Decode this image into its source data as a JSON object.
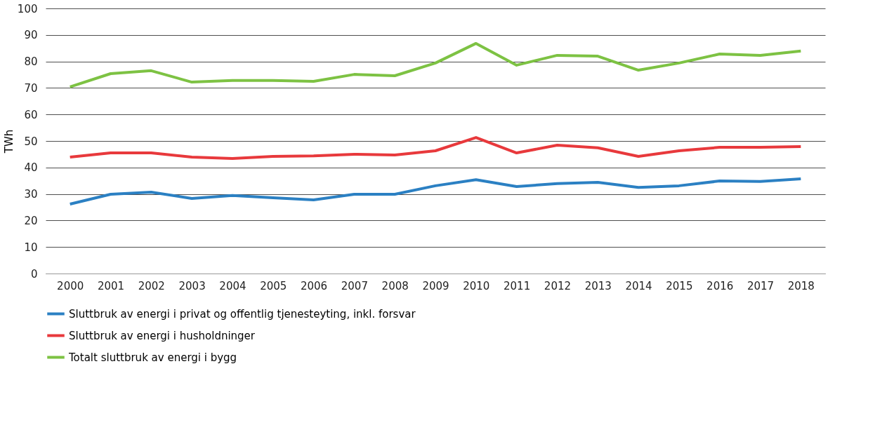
{
  "chart_data": {
    "type": "line",
    "ylabel": "TWh",
    "categories": [
      "2000",
      "2001",
      "2002",
      "2003",
      "2004",
      "2005",
      "2006",
      "2007",
      "2008",
      "2009",
      "2010",
      "2011",
      "2012",
      "2013",
      "2014",
      "2015",
      "2016",
      "2017",
      "2018"
    ],
    "series": [
      {
        "name": "Sluttbruk av energi i privat og offentlig tjenesteyting, inkl. forsvar",
        "color": "#2b80c3",
        "values": [
          26.2,
          29.9,
          30.7,
          28.3,
          29.4,
          28.6,
          27.8,
          29.9,
          29.9,
          33.1,
          35.4,
          32.8,
          33.9,
          34.4,
          32.5,
          33.1,
          34.9,
          34.7,
          35.7
        ]
      },
      {
        "name": "Sluttbruk av energi i husholdninger",
        "color": "#e8393c",
        "values": [
          43.9,
          45.5,
          45.5,
          43.9,
          43.4,
          44.2,
          44.4,
          45.0,
          44.7,
          46.3,
          51.3,
          45.5,
          48.4,
          47.4,
          44.2,
          46.3,
          47.6,
          47.6,
          47.9
        ]
      },
      {
        "name": "Totalt sluttbruk av energi i bygg",
        "color": "#7dc243",
        "values": [
          70.4,
          75.4,
          76.5,
          72.2,
          72.8,
          72.8,
          72.5,
          75.1,
          74.6,
          79.4,
          86.8,
          78.6,
          82.3,
          82.0,
          76.7,
          79.4,
          82.8,
          82.3,
          83.9
        ]
      }
    ],
    "ylim": [
      0,
      100
    ],
    "yticks": [
      0,
      10,
      20,
      30,
      40,
      50,
      60,
      70,
      80,
      90,
      100
    ],
    "grid": "y",
    "legend": "bottom",
    "marker": "none",
    "line_style": "solid"
  }
}
